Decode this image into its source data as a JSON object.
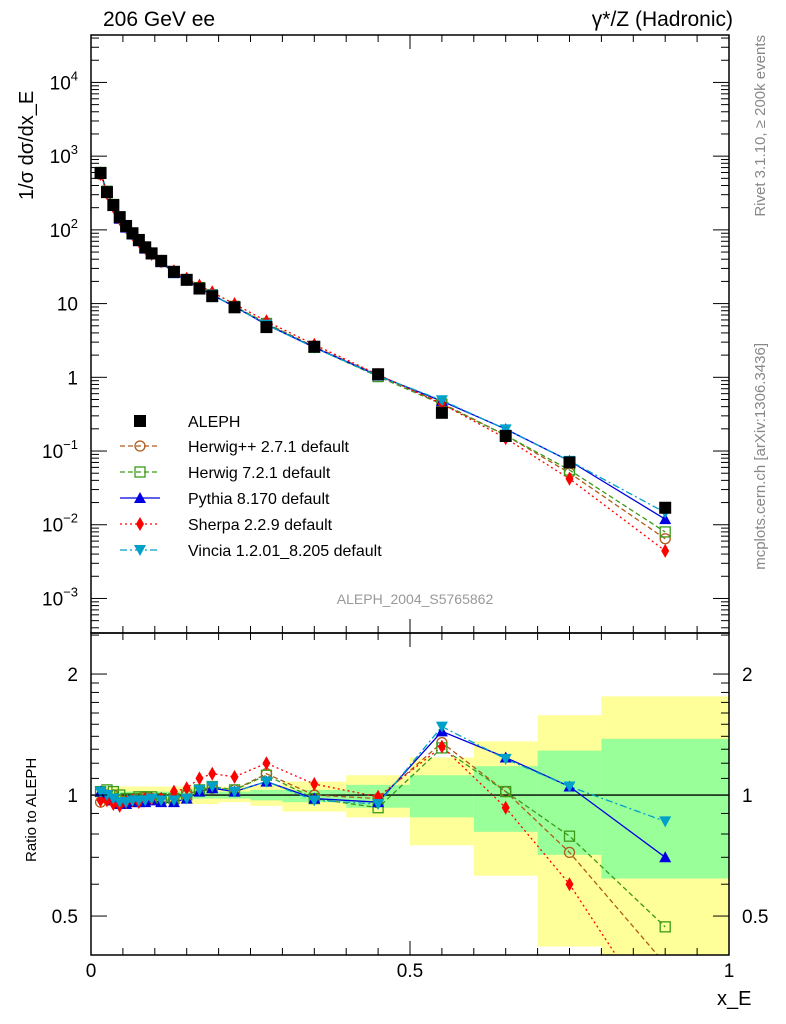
{
  "chart_data": {
    "type": "line",
    "title_left": "206 GeV ee",
    "title_right": "γ*/Z (Hadronic)",
    "ylabel": "1/σ dσ/dx_E",
    "xlabel": "x_E",
    "ratio_ylabel": "Ratio to ALEPH",
    "analysis_label": "ALEPH_2004_S5765862",
    "side_label_top": "Rivet 3.1.10, ≥ 200k events",
    "side_label_bottom": "mcplots.cern.ch [arXiv:1306.3436]",
    "xlim": [
      0,
      1
    ],
    "ylim_log": [
      0.00034,
      44000
    ],
    "ratio_ylim_log": [
      0.4,
      2.53
    ],
    "x_ticks": [
      "0",
      "0.5",
      "1"
    ],
    "y_ticks": [
      {
        "label": "10",
        "exp": "4",
        "value": 10000
      },
      {
        "label": "10",
        "exp": "3",
        "value": 1000
      },
      {
        "label": "10",
        "exp": "2",
        "value": 100
      },
      {
        "label": "10",
        "exp": "",
        "value": 10
      },
      {
        "label": "1",
        "exp": "",
        "value": 1
      },
      {
        "label": "10",
        "exp": "−1",
        "value": 0.1
      },
      {
        "label": "10",
        "exp": "−2",
        "value": 0.01
      },
      {
        "label": "10",
        "exp": "−3",
        "value": 0.001
      }
    ],
    "ratio_ticks": [
      {
        "label": "2",
        "value": 2
      },
      {
        "label": "1",
        "value": 1
      },
      {
        "label": "0.5",
        "value": 0.5
      }
    ],
    "x": [
      0.015,
      0.025,
      0.035,
      0.045,
      0.055,
      0.065,
      0.075,
      0.085,
      0.095,
      0.11,
      0.13,
      0.15,
      0.17,
      0.19,
      0.225,
      0.275,
      0.35,
      0.45,
      0.55,
      0.65,
      0.75,
      0.9
    ],
    "bin_edges": [
      0.01,
      0.02,
      0.03,
      0.04,
      0.05,
      0.06,
      0.07,
      0.08,
      0.09,
      0.1,
      0.12,
      0.14,
      0.16,
      0.18,
      0.2,
      0.25,
      0.3,
      0.4,
      0.5,
      0.6,
      0.7,
      0.8,
      1.0
    ],
    "data": {
      "name": "ALEPH",
      "values": [
        590,
        325,
        217,
        149,
        113,
        90,
        73,
        58,
        48,
        38,
        27,
        21,
        16,
        12.6,
        8.9,
        4.8,
        2.6,
        1.1,
        0.33,
        0.16,
        0.07,
        0.017
      ],
      "total_band_lo": [
        0.95,
        0.95,
        0.95,
        0.95,
        0.95,
        0.95,
        0.95,
        0.95,
        0.95,
        0.95,
        0.95,
        0.95,
        0.95,
        0.95,
        0.96,
        0.94,
        0.91,
        0.88,
        0.75,
        0.63,
        0.42,
        0.3
      ],
      "total_band_hi": [
        1.05,
        1.05,
        1.05,
        1.05,
        1.05,
        1.05,
        1.05,
        1.05,
        1.05,
        1.05,
        1.05,
        1.05,
        1.05,
        1.05,
        1.05,
        1.06,
        1.08,
        1.12,
        1.24,
        1.36,
        1.58,
        1.76
      ],
      "stat_band_lo": [
        0.98,
        0.98,
        0.98,
        0.98,
        0.98,
        0.98,
        0.98,
        0.98,
        0.98,
        0.98,
        0.98,
        0.98,
        0.98,
        0.98,
        0.98,
        0.97,
        0.96,
        0.93,
        0.88,
        0.81,
        0.71,
        0.62
      ],
      "stat_band_hi": [
        1.02,
        1.02,
        1.02,
        1.02,
        1.02,
        1.02,
        1.02,
        1.02,
        1.02,
        1.02,
        1.02,
        1.02,
        1.02,
        1.02,
        1.02,
        1.03,
        1.03,
        1.06,
        1.12,
        1.18,
        1.29,
        1.38
      ]
    },
    "series": [
      {
        "name": "Herwig++ 2.7.1 default",
        "color": "#b05a1a",
        "marker": "circle-open",
        "dash": "5,3",
        "ratio": [
          0.96,
          0.98,
          1.0,
          0.97,
          0.96,
          0.97,
          0.98,
          0.99,
          0.98,
          0.97,
          0.98,
          1.0,
          1.03,
          1.04,
          1.03,
          1.13,
          1.0,
          0.98,
          1.35,
          1.02,
          0.72,
          0.38
        ]
      },
      {
        "name": "Herwig 7.2.1 default",
        "color": "#3a9a1a",
        "marker": "square-open",
        "dash": "5,3",
        "ratio": [
          1.02,
          1.03,
          1.02,
          1.0,
          0.98,
          0.98,
          0.99,
          0.99,
          0.99,
          0.98,
          0.98,
          1.0,
          1.03,
          1.05,
          1.03,
          1.12,
          0.98,
          0.93,
          1.31,
          1.02,
          0.79,
          0.47
        ]
      },
      {
        "name": "Pythia 8.170 default",
        "color": "#0000e0",
        "marker": "triangle-up",
        "dash": "",
        "ratio": [
          1.02,
          1.0,
          0.97,
          0.95,
          0.95,
          0.96,
          0.96,
          0.96,
          0.97,
          0.96,
          0.96,
          0.98,
          1.02,
          1.04,
          1.02,
          1.08,
          0.98,
          0.96,
          1.44,
          1.24,
          1.05,
          0.7
        ]
      },
      {
        "name": "Sherpa 2.2.9 default",
        "color": "#ff0000",
        "marker": "diamond",
        "dash": "2,3",
        "ratio": [
          0.97,
          0.97,
          0.95,
          0.94,
          0.96,
          0.97,
          0.96,
          0.98,
          0.98,
          0.98,
          1.02,
          1.04,
          1.1,
          1.13,
          1.11,
          1.2,
          1.065,
          0.99,
          1.32,
          0.93,
          0.6,
          0.26
        ]
      },
      {
        "name": "Vincia 1.2.01_8.205 default",
        "color": "#00a0c8",
        "marker": "triangle-down",
        "dash": "7,3,2,3",
        "ratio": [
          1.02,
          1.0,
          0.98,
          0.96,
          0.96,
          0.97,
          0.97,
          0.97,
          0.98,
          0.97,
          0.97,
          0.98,
          1.03,
          1.05,
          1.02,
          1.08,
          0.97,
          0.95,
          1.48,
          1.23,
          1.05,
          0.86
        ]
      }
    ],
    "legend_position": "lower-left",
    "colors": {
      "total_band": "#ffff99",
      "stat_band": "#99ff99",
      "axis": "#000000",
      "side_text": "#888888"
    }
  }
}
